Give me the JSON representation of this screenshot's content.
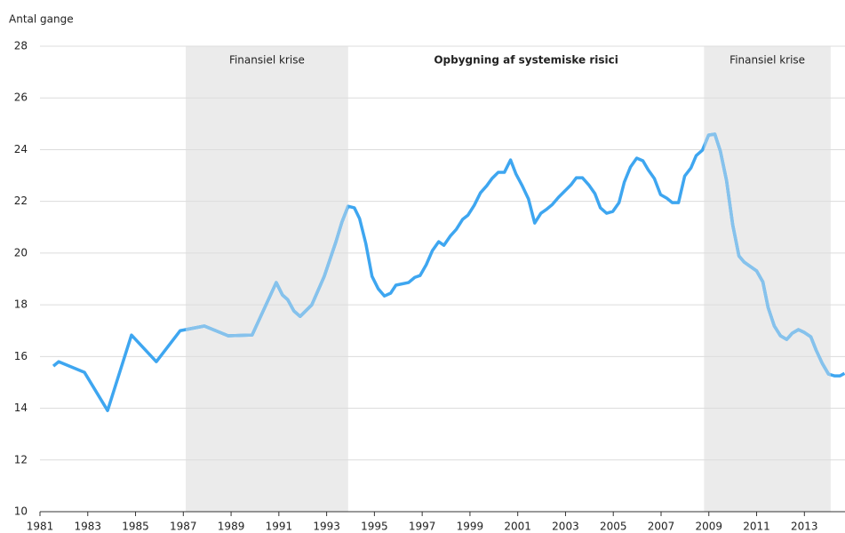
{
  "chart_data": {
    "type": "line",
    "y_axis_label": "Antal gange",
    "annotation": "Opbygning af systemiske risici",
    "shaded_regions": [
      {
        "start": 1987.1,
        "end": 1993.9,
        "label": "Finansiel krise"
      },
      {
        "start": 2008.8,
        "end": 2014.1,
        "label": "Finansiel krise"
      }
    ],
    "shade_color": "#ebebeb",
    "shaded_line_color": "#86c2ec",
    "xlim": [
      1981,
      2014.7
    ],
    "xticks": [
      1981,
      1983,
      1985,
      1987,
      1989,
      1991,
      1993,
      1995,
      1997,
      1999,
      2001,
      2003,
      2005,
      2007,
      2009,
      2011,
      2013
    ],
    "ylim": [
      10,
      28
    ],
    "yticks": [
      10,
      12,
      14,
      16,
      18,
      20,
      22,
      24,
      26,
      28
    ],
    "grid": true,
    "x": [
      1981.56,
      1981.78,
      1982.86,
      1983.83,
      1984.83,
      1985.87,
      1986.87,
      1987.88,
      1988.88,
      1989.88,
      1990.89,
      1991.15,
      1991.37,
      1991.63,
      1991.89,
      1992.38,
      1992.9,
      1993.38,
      1993.64,
      1993.9,
      1994.16,
      1994.38,
      1994.64,
      1994.9,
      1995.16,
      1995.42,
      1995.68,
      1995.9,
      1996.43,
      1996.69,
      1996.91,
      1997.17,
      1997.43,
      1997.69,
      1997.91,
      1998.17,
      1998.43,
      1998.69,
      1998.92,
      1999.18,
      1999.44,
      1999.7,
      1999.92,
      2000.18,
      2000.44,
      2000.7,
      2000.93,
      2001.19,
      2001.45,
      2001.71,
      2001.97,
      2002.19,
      2002.45,
      2002.71,
      2002.97,
      2003.23,
      2003.45,
      2003.71,
      2003.97,
      2004.23,
      2004.46,
      2004.72,
      2004.98,
      2005.24,
      2005.46,
      2005.72,
      2005.98,
      2006.24,
      2006.46,
      2006.72,
      2006.98,
      2007.24,
      2007.47,
      2007.73,
      2007.99,
      2008.25,
      2008.47,
      2008.73,
      2008.99,
      2009.25,
      2009.48,
      2009.74,
      2010.0,
      2010.26,
      2010.48,
      2010.74,
      2011.0,
      2011.26,
      2011.48,
      2011.74,
      2012.0,
      2012.26,
      2012.49,
      2012.75,
      2013.0,
      2013.27,
      2013.49,
      2013.75,
      2014.01,
      2014.27,
      2014.49,
      2014.68
    ],
    "series": [
      {
        "color": "#3ea6f0",
        "values": [
          15.63,
          15.8,
          15.39,
          13.91,
          16.83,
          15.8,
          17.0,
          17.18,
          16.8,
          16.83,
          18.86,
          18.38,
          18.2,
          17.76,
          17.55,
          18.0,
          19.1,
          20.41,
          21.2,
          21.81,
          21.75,
          21.33,
          20.37,
          19.1,
          18.62,
          18.34,
          18.45,
          18.76,
          18.86,
          19.06,
          19.13,
          19.55,
          20.1,
          20.44,
          20.3,
          20.65,
          20.92,
          21.3,
          21.47,
          21.85,
          22.33,
          22.6,
          22.88,
          23.12,
          23.12,
          23.6,
          23.05,
          22.6,
          22.09,
          21.16,
          21.54,
          21.68,
          21.88,
          22.16,
          22.4,
          22.64,
          22.91,
          22.91,
          22.64,
          22.3,
          21.75,
          21.54,
          21.61,
          21.95,
          22.74,
          23.33,
          23.67,
          23.57,
          23.22,
          22.88,
          22.26,
          22.12,
          21.95,
          21.95,
          22.98,
          23.29,
          23.77,
          23.98,
          24.56,
          24.6,
          23.95,
          22.81,
          21.09,
          19.89,
          19.65,
          19.48,
          19.31,
          18.89,
          17.9,
          17.18,
          16.8,
          16.66,
          16.9,
          17.04,
          16.93,
          16.76,
          16.25,
          15.73,
          15.32,
          15.25,
          15.25,
          15.35
        ]
      }
    ]
  }
}
